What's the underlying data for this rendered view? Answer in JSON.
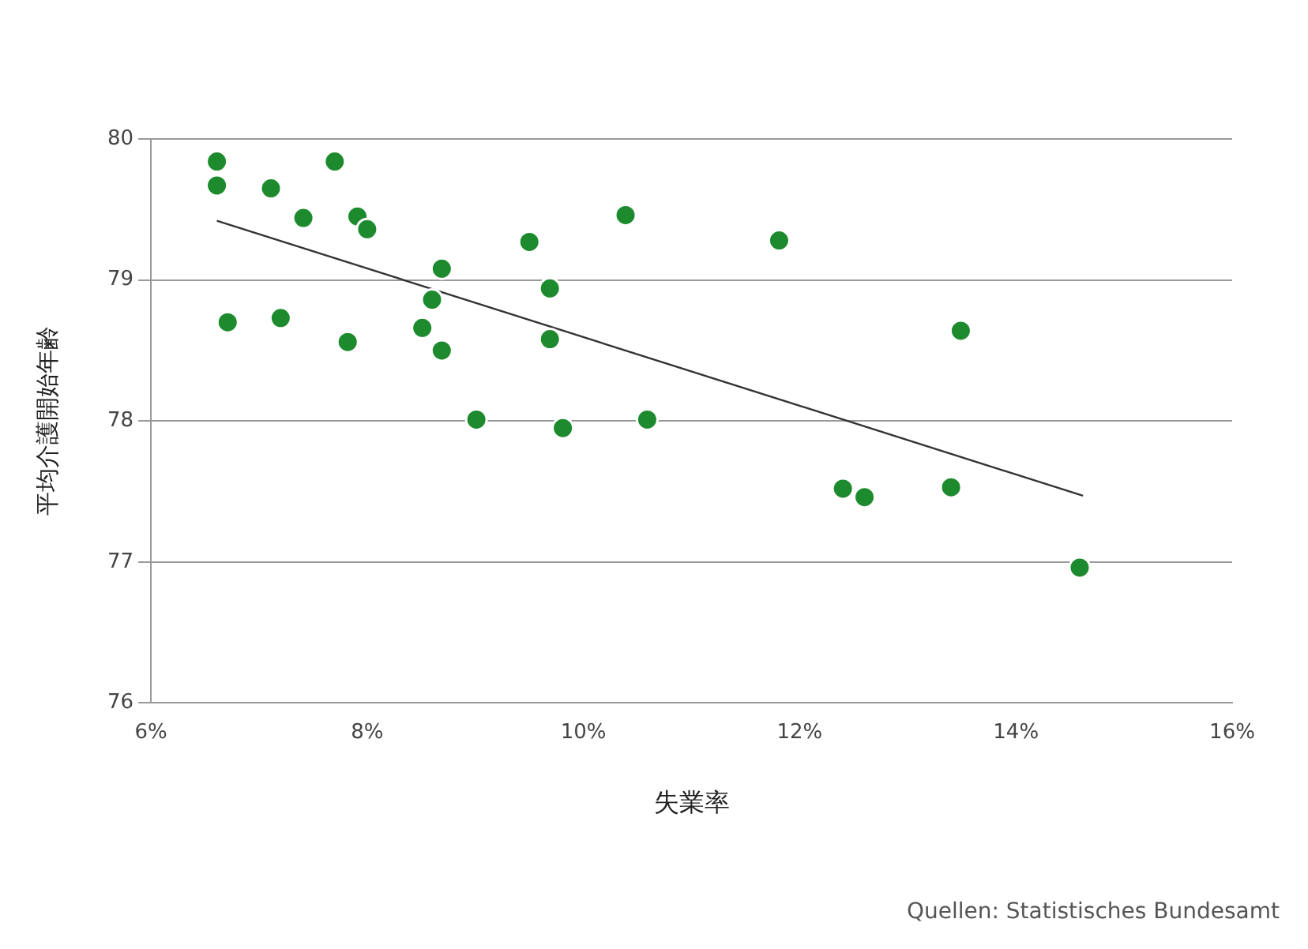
{
  "chart_data": {
    "type": "scatter",
    "xlabel": "失業率",
    "ylabel": "平均介護開始年齢",
    "annotations": [
      "Quellen: Statistisches Bundesamt"
    ],
    "xlim": [
      6,
      16
    ],
    "xticks": [
      {
        "value": 6,
        "label": "6%"
      },
      {
        "value": 8,
        "label": "8%"
      },
      {
        "value": 10,
        "label": "10%"
      },
      {
        "value": 12,
        "label": "12%"
      },
      {
        "value": 14,
        "label": "14%"
      },
      {
        "value": 16,
        "label": "16%"
      }
    ],
    "ylim": [
      76,
      80
    ],
    "yticks": [
      76,
      77,
      78,
      79,
      80
    ],
    "grid": "y",
    "legend": false,
    "series": [
      {
        "type": "scatter",
        "color": "#1e8a2e",
        "marker": "circle",
        "x": [
          6.61,
          6.61,
          7.11,
          7.7,
          7.41,
          7.91,
          8.0,
          6.71,
          7.2,
          7.82,
          8.69,
          8.6,
          8.51,
          8.69,
          9.01,
          9.5,
          9.69,
          9.69,
          9.81,
          10.39,
          10.59,
          11.81,
          12.4,
          12.6,
          13.4,
          13.49,
          14.59
        ],
        "values": [
          79.84,
          79.67,
          79.65,
          79.84,
          79.44,
          79.45,
          79.36,
          78.7,
          78.73,
          78.56,
          79.08,
          78.86,
          78.66,
          78.5,
          78.01,
          79.27,
          78.94,
          78.58,
          77.95,
          79.46,
          78.01,
          79.28,
          77.52,
          77.46,
          77.53,
          78.64,
          76.96
        ]
      },
      {
        "type": "line",
        "color": "#333333",
        "marker": "none",
        "x": [
          6.61,
          14.62
        ],
        "values": [
          79.42,
          77.47
        ]
      }
    ]
  }
}
